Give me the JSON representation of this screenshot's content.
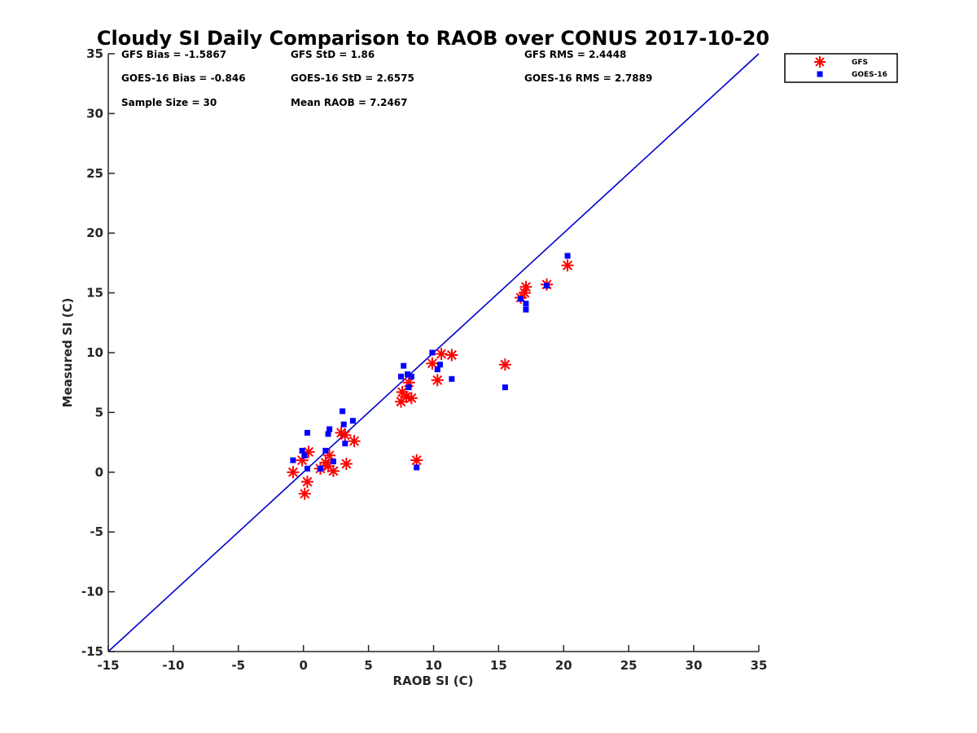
{
  "chart_data": {
    "type": "scatter",
    "title": "Cloudy SI Daily Comparison to RAOB over CONUS 2017-10-20",
    "xlabel": "RAOB SI (C)",
    "ylabel": "Measured SI (C)",
    "xlim": [
      -15,
      35
    ],
    "ylim": [
      -15,
      35
    ],
    "xticks": [
      "-15",
      "-10",
      "-5",
      "0",
      "5",
      "10",
      "15",
      "20",
      "25",
      "30",
      "35"
    ],
    "yticks": [
      "-15",
      "-10",
      "-5",
      "0",
      "5",
      "10",
      "15",
      "20",
      "25",
      "30",
      "35"
    ],
    "grid": false,
    "legend_position": "outside-top-right",
    "reference_line": {
      "from": [
        -15,
        -15
      ],
      "to": [
        35,
        35
      ],
      "color": "#0000cc"
    },
    "stats": [
      {
        "label": "GFS Bias = -1.5867"
      },
      {
        "label": "GFS StD = 1.86"
      },
      {
        "label": "GFS RMS = 2.4448"
      },
      {
        "label": "GOES-16 Bias = -0.846"
      },
      {
        "label": "GOES-16 StD = 2.6575"
      },
      {
        "label": "GOES-16 RMS = 2.7889"
      },
      {
        "label": "Sample Size = 30"
      },
      {
        "label": "Mean RAOB = 7.2467"
      }
    ],
    "series": [
      {
        "name": "GFS",
        "marker": "asterisk",
        "color": "#ff0000",
        "points": [
          [
            -0.8,
            0.0
          ],
          [
            -0.1,
            1.0
          ],
          [
            0.1,
            -1.8
          ],
          [
            0.3,
            -0.8
          ],
          [
            0.4,
            1.7
          ],
          [
            1.3,
            0.3
          ],
          [
            1.7,
            0.8
          ],
          [
            2.0,
            1.4
          ],
          [
            1.9,
            0.5
          ],
          [
            2.3,
            0.1
          ],
          [
            2.9,
            3.3
          ],
          [
            3.2,
            3.1
          ],
          [
            3.3,
            0.7
          ],
          [
            3.9,
            2.6
          ],
          [
            7.5,
            5.9
          ],
          [
            7.6,
            6.7
          ],
          [
            7.9,
            6.3
          ],
          [
            8.1,
            7.5
          ],
          [
            8.3,
            6.2
          ],
          [
            8.7,
            1.0
          ],
          [
            9.9,
            9.1
          ],
          [
            10.3,
            7.7
          ],
          [
            10.6,
            9.9
          ],
          [
            11.4,
            9.8
          ],
          [
            15.5,
            9.0
          ],
          [
            16.7,
            14.6
          ],
          [
            17.1,
            15.5
          ],
          [
            17.0,
            15.0
          ],
          [
            18.7,
            15.7
          ],
          [
            20.3,
            17.3
          ]
        ]
      },
      {
        "name": "GOES-16",
        "marker": "square",
        "color": "#0000ff",
        "points": [
          [
            -0.8,
            1.0
          ],
          [
            -0.1,
            1.8
          ],
          [
            0.1,
            1.4
          ],
          [
            0.3,
            3.3
          ],
          [
            0.3,
            0.3
          ],
          [
            1.3,
            0.3
          ],
          [
            1.7,
            1.8
          ],
          [
            1.9,
            3.2
          ],
          [
            2.0,
            3.6
          ],
          [
            2.3,
            0.9
          ],
          [
            3.0,
            5.1
          ],
          [
            3.1,
            4.0
          ],
          [
            3.2,
            2.4
          ],
          [
            3.8,
            4.3
          ],
          [
            7.5,
            8.0
          ],
          [
            7.7,
            8.9
          ],
          [
            8.0,
            8.2
          ],
          [
            8.1,
            7.1
          ],
          [
            8.3,
            8.0
          ],
          [
            8.7,
            0.4
          ],
          [
            9.9,
            10.0
          ],
          [
            10.3,
            8.6
          ],
          [
            10.5,
            9.0
          ],
          [
            11.4,
            7.8
          ],
          [
            15.5,
            7.1
          ],
          [
            16.7,
            14.5
          ],
          [
            17.1,
            14.1
          ],
          [
            17.1,
            13.6
          ],
          [
            18.7,
            15.6
          ],
          [
            20.3,
            18.1
          ]
        ]
      }
    ]
  }
}
